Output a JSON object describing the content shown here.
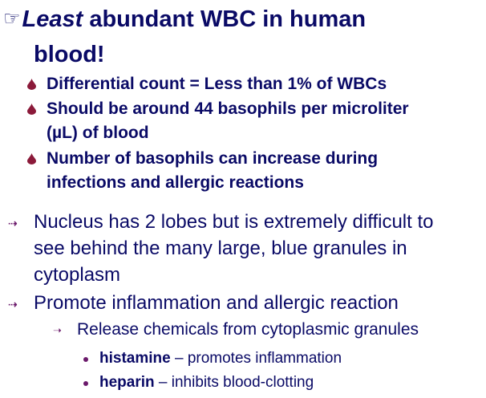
{
  "slide": {
    "heading": {
      "pointer_glyph": "☞",
      "emphasis": "Least",
      "rest_line1": " abundant WBC in human",
      "rest_line2": "blood!"
    },
    "sub_bullets": [
      {
        "text": "Differential count = Less than 1% of WBCs"
      },
      {
        "text_line1": "Should be around 44 basophils per microliter",
        "text_line2": "(µL) of blood"
      },
      {
        "text_line1": "Number of basophils can increase during",
        "text_line2": "infections and allergic reactions"
      }
    ],
    "level1": [
      {
        "line1": "Nucleus has 2 lobes but is extremely difficult to",
        "line2": "see behind the many large, blue granules in",
        "line3": "cytoplasm"
      },
      {
        "line1": "Promote inflammation and allergic reaction"
      }
    ],
    "level2": [
      {
        "text": "Release chemicals from cytoplasmic granules"
      }
    ],
    "level3": [
      {
        "term": "histamine",
        "desc": " – promotes inflammation"
      },
      {
        "term": "heparin",
        "desc": " – inhibits blood-clotting"
      }
    ],
    "icons": {
      "pointer": "pointing-hand-icon",
      "sub_bullet": "drop-icon",
      "level1_bullet": "dotted-arrow-icon",
      "level2_bullet": "arrow-icon",
      "level3_bullet": "dot-icon"
    },
    "colors": {
      "text": "#0a0a66",
      "drop": "#8b1a3a",
      "arrow": "#6b1a6b"
    }
  }
}
